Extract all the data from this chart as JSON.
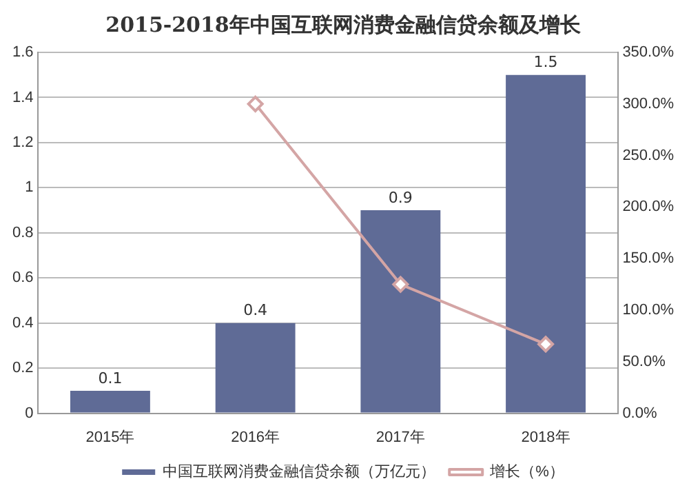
{
  "chart_data": {
    "type": "bar",
    "title": "2015-2018年中国互联网消费金融信贷余额及增长",
    "categories": [
      "2015年",
      "2016年",
      "2017年",
      "2018年"
    ],
    "series": [
      {
        "name": "中国互联网消费金融信贷余额（万亿元）",
        "color": "#5f6b96",
        "values": [
          0.1,
          0.4,
          0.9,
          1.5
        ],
        "value_labels": [
          "0.1",
          "0.4",
          "0.9",
          "1.5"
        ]
      },
      {
        "name": "增长（%）",
        "type": "line",
        "axis": "y2",
        "color": "#d4a5a5",
        "marker": "diamond",
        "values": [
          null,
          300,
          125,
          67
        ]
      }
    ],
    "ylim": [
      0,
      1.6
    ],
    "yticks": [
      0,
      {
        "value": 0.2,
        "label": "0.2"
      },
      {
        "value": 0.4,
        "label": "0.4"
      },
      {
        "value": 0.6,
        "label": "0.6"
      },
      {
        "value": 0.8,
        "label": "0.8"
      },
      1,
      {
        "value": 1.2,
        "label": "1.2"
      },
      {
        "value": 1.4,
        "label": "1.4"
      },
      {
        "value": 1.6,
        "label": "1.6"
      }
    ],
    "y2lim": [
      0,
      350
    ],
    "y2ticks": [
      {
        "value": 0,
        "label": "0.0%"
      },
      {
        "value": 50,
        "label": "50.0%"
      },
      {
        "value": 100,
        "label": "100.0%"
      },
      {
        "value": 150,
        "label": "150.0%"
      },
      {
        "value": 200,
        "label": "200.0%"
      },
      {
        "value": 250,
        "label": "250.0%"
      },
      {
        "value": 300,
        "label": "300.0%"
      },
      {
        "value": 350,
        "label": "350.0%"
      }
    ],
    "grid": "y",
    "legend": "bottom"
  }
}
